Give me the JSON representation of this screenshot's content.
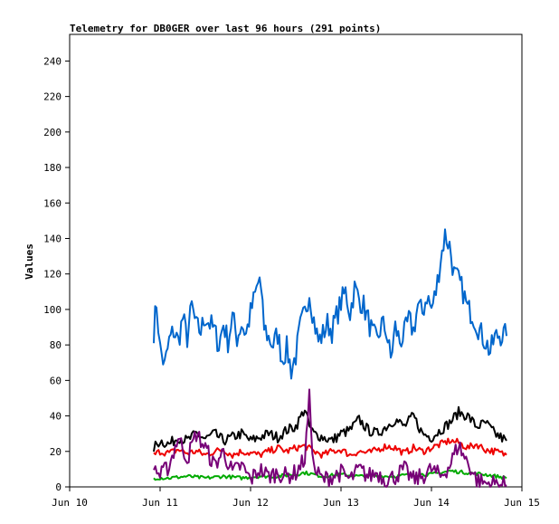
{
  "chart_data": {
    "type": "line",
    "title": "Telemetry for DB0GER over last 96 hours (291 points)",
    "xlabel": "",
    "ylabel": "Values",
    "x_ticks": [
      "Jun 10",
      "Jun 11",
      "Jun 12",
      "Jun 13",
      "Jun 14",
      "Jun 15"
    ],
    "y_ticks": [
      0,
      20,
      40,
      60,
      80,
      100,
      120,
      140,
      160,
      180,
      200,
      220,
      240
    ],
    "xlim": [
      0,
      5
    ],
    "ylim": [
      0,
      255
    ],
    "grid": false,
    "legend": "none",
    "series": [
      {
        "color": "#0066cc",
        "anchors": [
          [
            0.93,
            88
          ],
          [
            0.96,
            104
          ],
          [
            1.0,
            78
          ],
          [
            1.05,
            68
          ],
          [
            1.1,
            82
          ],
          [
            1.15,
            88
          ],
          [
            1.2,
            82
          ],
          [
            1.25,
            95
          ],
          [
            1.3,
            84
          ],
          [
            1.35,
            102
          ],
          [
            1.4,
            90
          ],
          [
            1.45,
            88
          ],
          [
            1.5,
            96
          ],
          [
            1.55,
            92
          ],
          [
            1.6,
            88
          ],
          [
            1.65,
            80
          ],
          [
            1.7,
            92
          ],
          [
            1.75,
            82
          ],
          [
            1.8,
            96
          ],
          [
            1.85,
            84
          ],
          [
            1.9,
            92
          ],
          [
            1.95,
            86
          ],
          [
            2.0,
            98
          ],
          [
            2.05,
            108
          ],
          [
            2.1,
            118
          ],
          [
            2.15,
            90
          ],
          [
            2.2,
            84
          ],
          [
            2.25,
            80
          ],
          [
            2.3,
            86
          ],
          [
            2.35,
            72
          ],
          [
            2.4,
            78
          ],
          [
            2.45,
            66
          ],
          [
            2.5,
            74
          ],
          [
            2.55,
            90
          ],
          [
            2.6,
            98
          ],
          [
            2.65,
            110
          ],
          [
            2.7,
            94
          ],
          [
            2.75,
            82
          ],
          [
            2.8,
            86
          ],
          [
            2.85,
            92
          ],
          [
            2.9,
            88
          ],
          [
            2.95,
            96
          ],
          [
            3.0,
            104
          ],
          [
            3.05,
            110
          ],
          [
            3.1,
            98
          ],
          [
            3.15,
            112
          ],
          [
            3.2,
            106
          ],
          [
            3.25,
            102
          ],
          [
            3.3,
            94
          ],
          [
            3.35,
            86
          ],
          [
            3.4,
            82
          ],
          [
            3.45,
            92
          ],
          [
            3.5,
            88
          ],
          [
            3.55,
            72
          ],
          [
            3.6,
            90
          ],
          [
            3.65,
            82
          ],
          [
            3.7,
            86
          ],
          [
            3.75,
            94
          ],
          [
            3.8,
            88
          ],
          [
            3.85,
            102
          ],
          [
            3.9,
            98
          ],
          [
            3.95,
            108
          ],
          [
            4.0,
            100
          ],
          [
            4.05,
            110
          ],
          [
            4.1,
            128
          ],
          [
            4.15,
            142
          ],
          [
            4.2,
            136
          ],
          [
            4.25,
            120
          ],
          [
            4.3,
            116
          ],
          [
            4.35,
            110
          ],
          [
            4.4,
            100
          ],
          [
            4.45,
            98
          ],
          [
            4.5,
            92
          ],
          [
            4.55,
            86
          ],
          [
            4.6,
            82
          ],
          [
            4.65,
            76
          ],
          [
            4.7,
            84
          ],
          [
            4.75,
            86
          ],
          [
            4.83,
            85
          ]
        ],
        "amp": 7
      },
      {
        "color": "#000000",
        "anchors": [
          [
            0.93,
            22
          ],
          [
            1.0,
            26
          ],
          [
            1.1,
            24
          ],
          [
            1.2,
            28
          ],
          [
            1.3,
            26
          ],
          [
            1.4,
            30
          ],
          [
            1.5,
            27
          ],
          [
            1.6,
            30
          ],
          [
            1.7,
            26
          ],
          [
            1.8,
            28
          ],
          [
            1.9,
            30
          ],
          [
            2.0,
            26
          ],
          [
            2.1,
            28
          ],
          [
            2.2,
            30
          ],
          [
            2.3,
            28
          ],
          [
            2.4,
            32
          ],
          [
            2.5,
            34
          ],
          [
            2.6,
            44
          ],
          [
            2.65,
            34
          ],
          [
            2.7,
            30
          ],
          [
            2.8,
            28
          ],
          [
            2.9,
            26
          ],
          [
            3.0,
            30
          ],
          [
            3.1,
            32
          ],
          [
            3.2,
            38
          ],
          [
            3.3,
            32
          ],
          [
            3.4,
            30
          ],
          [
            3.5,
            34
          ],
          [
            3.6,
            38
          ],
          [
            3.7,
            34
          ],
          [
            3.8,
            40
          ],
          [
            3.9,
            30
          ],
          [
            4.0,
            28
          ],
          [
            4.1,
            32
          ],
          [
            4.2,
            36
          ],
          [
            4.3,
            42
          ],
          [
            4.4,
            40
          ],
          [
            4.5,
            34
          ],
          [
            4.6,
            36
          ],
          [
            4.7,
            30
          ],
          [
            4.83,
            26
          ]
        ],
        "amp": 3
      },
      {
        "color": "#ee0000",
        "anchors": [
          [
            0.93,
            18
          ],
          [
            1.0,
            20
          ],
          [
            1.1,
            19
          ],
          [
            1.2,
            21
          ],
          [
            1.3,
            19
          ],
          [
            1.4,
            20
          ],
          [
            1.5,
            18
          ],
          [
            1.6,
            20
          ],
          [
            1.7,
            21
          ],
          [
            1.8,
            18
          ],
          [
            1.9,
            20
          ],
          [
            2.0,
            19
          ],
          [
            2.1,
            18
          ],
          [
            2.2,
            20
          ],
          [
            2.3,
            22
          ],
          [
            2.4,
            20
          ],
          [
            2.5,
            22
          ],
          [
            2.6,
            23
          ],
          [
            2.7,
            20
          ],
          [
            2.8,
            18
          ],
          [
            2.9,
            20
          ],
          [
            3.0,
            21
          ],
          [
            3.1,
            18
          ],
          [
            3.2,
            20
          ],
          [
            3.3,
            19
          ],
          [
            3.4,
            21
          ],
          [
            3.5,
            23
          ],
          [
            3.6,
            22
          ],
          [
            3.7,
            19
          ],
          [
            3.8,
            22
          ],
          [
            3.9,
            20
          ],
          [
            4.0,
            22
          ],
          [
            4.1,
            24
          ],
          [
            4.2,
            26
          ],
          [
            4.3,
            25
          ],
          [
            4.4,
            22
          ],
          [
            4.5,
            24
          ],
          [
            4.6,
            21
          ],
          [
            4.7,
            20
          ],
          [
            4.83,
            18
          ]
        ],
        "amp": 2
      },
      {
        "color": "#00aa00",
        "anchors": [
          [
            0.93,
            5
          ],
          [
            1.1,
            5
          ],
          [
            1.3,
            6
          ],
          [
            1.5,
            5
          ],
          [
            1.7,
            6
          ],
          [
            1.9,
            5
          ],
          [
            2.1,
            6
          ],
          [
            2.3,
            6
          ],
          [
            2.5,
            7
          ],
          [
            2.6,
            8
          ],
          [
            2.8,
            6
          ],
          [
            3.0,
            7
          ],
          [
            3.2,
            6
          ],
          [
            3.4,
            6
          ],
          [
            3.6,
            6
          ],
          [
            3.8,
            7
          ],
          [
            4.0,
            7
          ],
          [
            4.2,
            9
          ],
          [
            4.4,
            8
          ],
          [
            4.6,
            7
          ],
          [
            4.83,
            5
          ]
        ],
        "amp": 1
      },
      {
        "color": "#770077",
        "anchors": [
          [
            0.93,
            12
          ],
          [
            1.0,
            6
          ],
          [
            1.1,
            12
          ],
          [
            1.2,
            28
          ],
          [
            1.3,
            16
          ],
          [
            1.4,
            30
          ],
          [
            1.5,
            22
          ],
          [
            1.6,
            12
          ],
          [
            1.7,
            20
          ],
          [
            1.8,
            8
          ],
          [
            1.9,
            12
          ],
          [
            2.0,
            4
          ],
          [
            2.1,
            10
          ],
          [
            2.2,
            6
          ],
          [
            2.3,
            8
          ],
          [
            2.4,
            6
          ],
          [
            2.5,
            8
          ],
          [
            2.6,
            16
          ],
          [
            2.65,
            50
          ],
          [
            2.7,
            10
          ],
          [
            2.8,
            4
          ],
          [
            2.9,
            6
          ],
          [
            3.0,
            8
          ],
          [
            3.1,
            4
          ],
          [
            3.2,
            10
          ],
          [
            3.3,
            6
          ],
          [
            3.4,
            8
          ],
          [
            3.5,
            4
          ],
          [
            3.6,
            6
          ],
          [
            3.7,
            10
          ],
          [
            3.8,
            4
          ],
          [
            3.9,
            6
          ],
          [
            4.0,
            10
          ],
          [
            4.1,
            6
          ],
          [
            4.2,
            12
          ],
          [
            4.3,
            24
          ],
          [
            4.35,
            18
          ],
          [
            4.4,
            14
          ],
          [
            4.5,
            4
          ],
          [
            4.6,
            2
          ],
          [
            4.7,
            2
          ],
          [
            4.83,
            1
          ]
        ],
        "amp": 5
      }
    ]
  }
}
